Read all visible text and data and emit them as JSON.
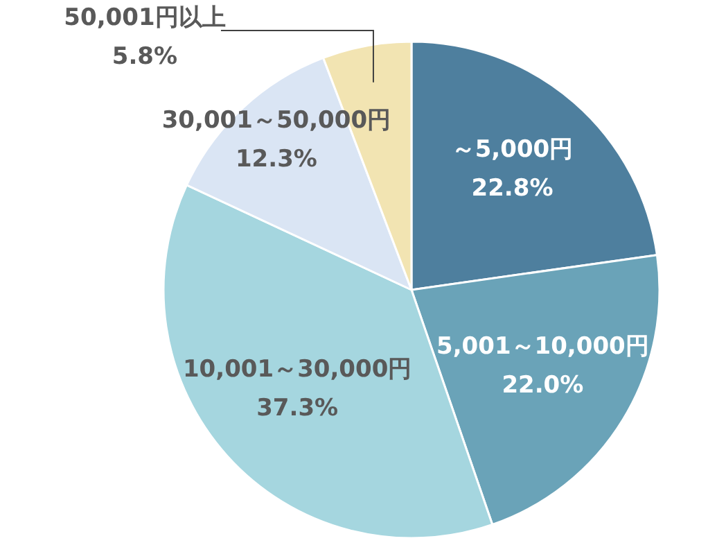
{
  "chart_data": {
    "type": "pie",
    "categories": [
      "～5,000円",
      "5,001～10,000円",
      "10,001～30,000円",
      "30,001～50,000円",
      "50,001円以上"
    ],
    "values": [
      22.8,
      22.0,
      37.3,
      12.3,
      5.8
    ],
    "value_labels": [
      "22.8%",
      "22.0%",
      "37.3%",
      "12.3%",
      "5.8%"
    ],
    "colors": [
      "#4e7f9e",
      "#6aa3b8",
      "#a5d6df",
      "#dae5f4",
      "#f2e4b2"
    ],
    "legend": false
  }
}
